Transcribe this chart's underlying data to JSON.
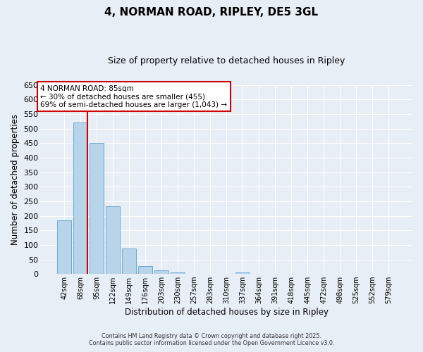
{
  "title": "4, NORMAN ROAD, RIPLEY, DE5 3GL",
  "subtitle": "Size of property relative to detached houses in Ripley",
  "xlabel": "Distribution of detached houses by size in Ripley",
  "ylabel": "Number of detached properties",
  "bar_labels": [
    "42sqm",
    "68sqm",
    "95sqm",
    "122sqm",
    "149sqm",
    "176sqm",
    "203sqm",
    "230sqm",
    "257sqm",
    "283sqm",
    "310sqm",
    "337sqm",
    "364sqm",
    "391sqm",
    "418sqm",
    "445sqm",
    "472sqm",
    "498sqm",
    "525sqm",
    "552sqm",
    "579sqm"
  ],
  "bar_values": [
    185,
    520,
    450,
    232,
    88,
    27,
    13,
    5,
    1,
    0,
    0,
    5,
    0,
    0,
    1,
    0,
    0,
    0,
    0,
    0,
    1
  ],
  "bar_color": "#b8d4ea",
  "bar_edge_color": "#6aaad4",
  "vline_color": "#cc0000",
  "ylim": [
    0,
    650
  ],
  "yticks": [
    0,
    50,
    100,
    150,
    200,
    250,
    300,
    350,
    400,
    450,
    500,
    550,
    600,
    650
  ],
  "annotation_title": "4 NORMAN ROAD: 85sqm",
  "annotation_line1": "← 30% of detached houses are smaller (455)",
  "annotation_line2": "69% of semi-detached houses are larger (1,043) →",
  "annotation_box_color": "#ffffff",
  "annotation_box_edge_color": "#cc0000",
  "footer1": "Contains HM Land Registry data © Crown copyright and database right 2025.",
  "footer2": "Contains public sector information licensed under the Open Government Licence v3.0.",
  "background_color": "#e8eef5",
  "grid_color": "#ffffff"
}
